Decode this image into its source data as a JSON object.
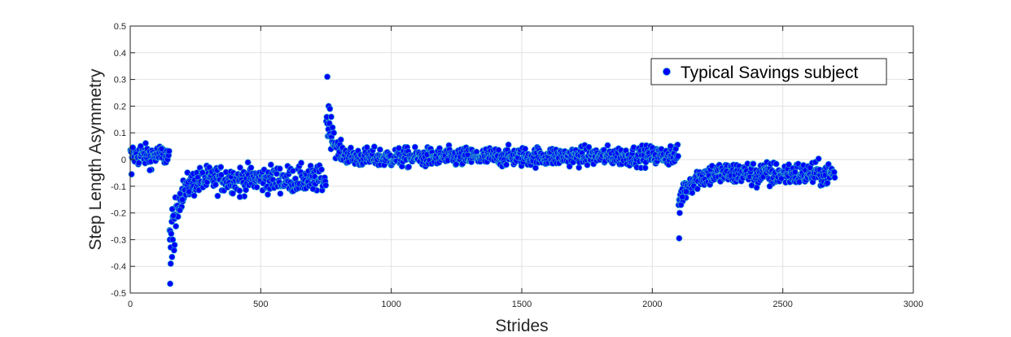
{
  "chart_data": {
    "type": "scatter",
    "title": "",
    "xlabel": "Strides",
    "ylabel": "Step Length Asymmetry",
    "xlim": [
      0,
      3000
    ],
    "ylim": [
      -0.5,
      0.5
    ],
    "x_ticks": [
      0,
      500,
      1000,
      1500,
      2000,
      2500,
      3000
    ],
    "y_ticks": [
      -0.5,
      -0.4,
      -0.3,
      -0.2,
      -0.1,
      0,
      0.1,
      0.2,
      0.3,
      0.4,
      0.5
    ],
    "x_tick_labels": [
      "0",
      "500",
      "1000",
      "1500",
      "2000",
      "2500",
      "3000"
    ],
    "y_tick_labels": [
      "-0.5",
      "-0.4",
      "-0.3",
      "-0.2",
      "-0.1",
      "0",
      "0.1",
      "0.2",
      "0.3",
      "0.4",
      "0.5"
    ],
    "grid": true,
    "legend_position": "top-right",
    "marker_color": "#0000ff",
    "marker_edge_color": "#2aa6c8",
    "series": [
      {
        "name": "Typical Savings subject",
        "segments": [
          {
            "x_start": 1,
            "x_end": 150,
            "mean_start": 0.015,
            "mean_end": 0.015,
            "spread": 0.02,
            "extra": [
              [
                5,
                -0.055
              ],
              [
                10,
                0.045
              ],
              [
                40,
                0.05
              ],
              [
                75,
                -0.04
              ],
              [
                120,
                0.04
              ]
            ]
          },
          {
            "x_start": 151,
            "x_end": 750,
            "mean_start": -0.3,
            "mean_end": -0.07,
            "spread": 0.025,
            "tau": 35,
            "floor_offset": -0.005,
            "extra": [
              [
                153,
                -0.465
              ],
              [
                155,
                -0.39
              ],
              [
                152,
                -0.3
              ],
              [
                160,
                -0.365
              ],
              [
                163,
                -0.3
              ],
              [
                168,
                -0.34
              ],
              [
                170,
                -0.32
              ],
              [
                165,
                -0.21
              ],
              [
                175,
                -0.25
              ],
              [
                190,
                -0.19
              ],
              [
                200,
                -0.15
              ],
              [
                225,
                -0.12
              ],
              [
                420,
                -0.14
              ],
              [
                700,
                -0.11
              ]
            ]
          },
          {
            "x_start": 751,
            "x_end": 2100,
            "mean_start": 0.15,
            "mean_end": 0.005,
            "spread": 0.018,
            "tau": 30,
            "floor_offset": 0.01,
            "extra": [
              [
                755,
                0.31
              ],
              [
                760,
                0.2
              ],
              [
                765,
                0.19
              ],
              [
                770,
                0.16
              ],
              [
                775,
                0.12
              ],
              [
                780,
                0.1
              ],
              [
                2070,
                0.05
              ],
              [
                2090,
                0.04
              ]
            ]
          },
          {
            "x_start": 2101,
            "x_end": 2700,
            "mean_start": -0.16,
            "mean_end": -0.05,
            "spread": 0.022,
            "tau": 40,
            "floor_offset": -0.005,
            "extra": [
              [
                2103,
                -0.295
              ],
              [
                2105,
                -0.2
              ],
              [
                2110,
                -0.17
              ],
              [
                2115,
                -0.14
              ],
              [
                2130,
                -0.12
              ],
              [
                2400,
                -0.105
              ],
              [
                2450,
                -0.1
              ]
            ]
          }
        ]
      }
    ]
  }
}
